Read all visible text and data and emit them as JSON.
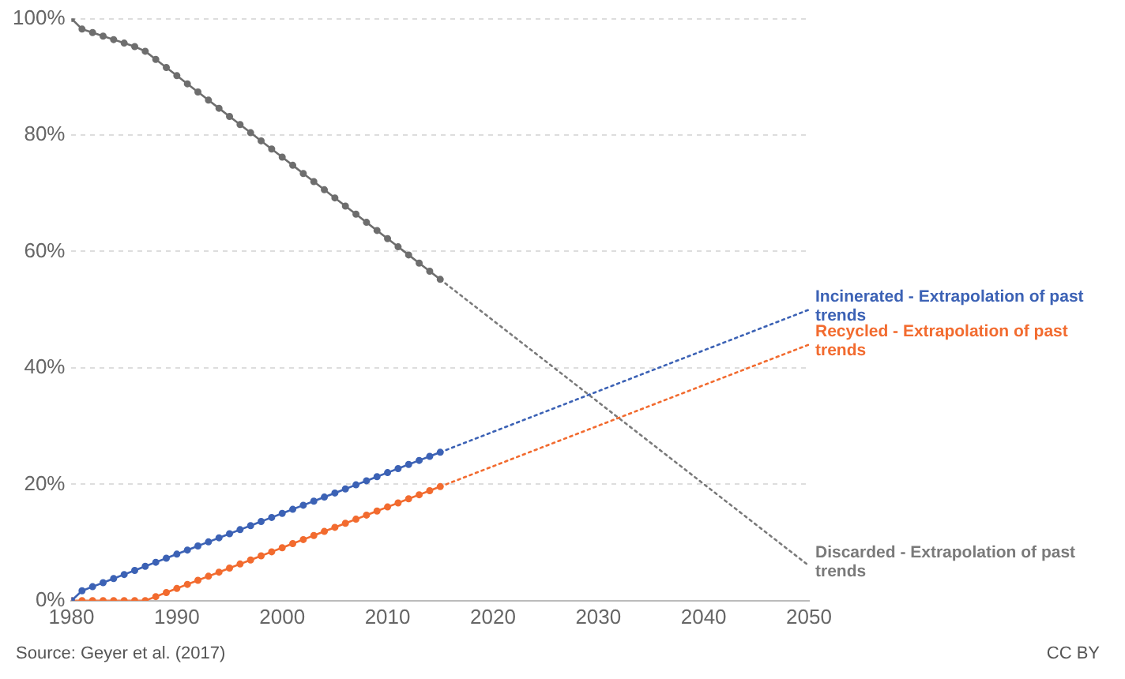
{
  "chart_data": {
    "type": "line",
    "legend": false,
    "grid": "y",
    "xlim": [
      1980,
      2050
    ],
    "xticks": [
      1980,
      1990,
      2000,
      2010,
      2020,
      2030,
      2040,
      2050
    ],
    "ylim": [
      0,
      100
    ],
    "yticks": [
      {
        "value": 0,
        "label": "0%"
      },
      {
        "value": 20,
        "label": "20%"
      },
      {
        "value": 40,
        "label": "40%"
      },
      {
        "value": 60,
        "label": "60%"
      },
      {
        "value": 80,
        "label": "80%"
      },
      {
        "value": 100,
        "label": "100%"
      }
    ],
    "series": [
      {
        "type": "line",
        "color": "#6e6e6e",
        "marker": "circle",
        "line_style": "solid",
        "x": [
          1980,
          1981,
          1982,
          1983,
          1984,
          1985,
          1986,
          1987,
          1988,
          1989,
          1990,
          1991,
          1992,
          1993,
          1994,
          1995,
          1996,
          1997,
          1998,
          1999,
          2000,
          2001,
          2002,
          2003,
          2004,
          2005,
          2006,
          2007,
          2008,
          2009,
          2010,
          2011,
          2012,
          2013,
          2014,
          2015
        ],
        "values": [
          100,
          98.2,
          97.6,
          97,
          96.4,
          95.8,
          95.2,
          94.4,
          93,
          91.6,
          90.2,
          88.8,
          87.4,
          86,
          84.6,
          83.2,
          81.8,
          80.4,
          79,
          77.6,
          76.2,
          74.8,
          73.4,
          72,
          70.6,
          69.2,
          67.8,
          66.4,
          65,
          63.6,
          62.2,
          60.8,
          59.4,
          58,
          56.6,
          55.2
        ]
      },
      {
        "type": "line",
        "color": "#3c62b5",
        "marker": "circle",
        "line_style": "solid",
        "x": [
          1980,
          1981,
          1982,
          1983,
          1984,
          1985,
          1986,
          1987,
          1988,
          1989,
          1990,
          1991,
          1992,
          1993,
          1994,
          1995,
          1996,
          1997,
          1998,
          1999,
          2000,
          2001,
          2002,
          2003,
          2004,
          2005,
          2006,
          2007,
          2008,
          2009,
          2010,
          2011,
          2012,
          2013,
          2014,
          2015
        ],
        "values": [
          0,
          1.7,
          2.4,
          3.1,
          3.8,
          4.5,
          5.2,
          5.9,
          6.6,
          7.3,
          8,
          8.7,
          9.4,
          10.1,
          10.8,
          11.5,
          12.2,
          12.9,
          13.6,
          14.3,
          15,
          15.7,
          16.4,
          17.1,
          17.8,
          18.5,
          19.2,
          19.9,
          20.6,
          21.3,
          22,
          22.7,
          23.4,
          24.1,
          24.8,
          25.5
        ]
      },
      {
        "type": "line",
        "color": "#f26b2f",
        "marker": "circle",
        "line_style": "solid",
        "x": [
          1980,
          1981,
          1982,
          1983,
          1984,
          1985,
          1986,
          1987,
          1988,
          1989,
          1990,
          1991,
          1992,
          1993,
          1994,
          1995,
          1996,
          1997,
          1998,
          1999,
          2000,
          2001,
          2002,
          2003,
          2004,
          2005,
          2006,
          2007,
          2008,
          2009,
          2010,
          2011,
          2012,
          2013,
          2014,
          2015
        ],
        "values": [
          0,
          0,
          0,
          0,
          0,
          0,
          0,
          0,
          0.7,
          1.4,
          2.1,
          2.8,
          3.5,
          4.2,
          4.9,
          5.6,
          6.3,
          7,
          7.7,
          8.4,
          9.1,
          9.8,
          10.5,
          11.2,
          11.9,
          12.6,
          13.3,
          14,
          14.7,
          15.4,
          16.1,
          16.8,
          17.5,
          18.2,
          18.9,
          19.6
        ]
      },
      {
        "type": "line",
        "name": "Incinerated - Extrapolation of past trends",
        "color": "#3c62b5",
        "marker": "none",
        "line_style": "dotted",
        "x": [
          2015,
          2050
        ],
        "values": [
          25.5,
          50
        ]
      },
      {
        "type": "line",
        "name": "Recycled - Extrapolation of past trends",
        "color": "#f26b2f",
        "marker": "none",
        "line_style": "dotted",
        "x": [
          2015,
          2050
        ],
        "values": [
          19.6,
          44
        ]
      },
      {
        "type": "line",
        "name": "Discarded - Extrapolation of past trends",
        "color": "#7a7a7a",
        "marker": "none",
        "line_style": "dotted",
        "x": [
          2015,
          2050
        ],
        "values": [
          55.2,
          6
        ]
      }
    ],
    "annotations": [
      "Source: Geyer et al. (2017)",
      "CC BY"
    ]
  }
}
